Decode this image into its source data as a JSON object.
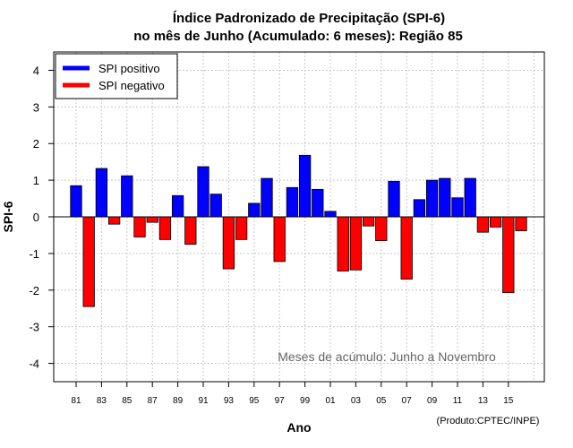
{
  "chart_data": {
    "type": "bar",
    "title_line1": "Índice Padronizado de Precipitação (SPI-6)",
    "title_line2": "no mês de Junho (Acumulado: 6 meses): Região 85",
    "xlabel": "Ano",
    "ylabel": "SPI-6",
    "ylim": [
      -4.5,
      4.5
    ],
    "yticks": [
      "4",
      "3",
      "2",
      "1",
      "0",
      "-1",
      "-2",
      "-3",
      "-4"
    ],
    "ytick_values": [
      4,
      3,
      2,
      1,
      0,
      -1,
      -2,
      -3,
      -4
    ],
    "years": [
      "81",
      "82",
      "83",
      "84",
      "85",
      "86",
      "87",
      "88",
      "89",
      "90",
      "91",
      "92",
      "93",
      "94",
      "95",
      "96",
      "97",
      "98",
      "99",
      "00",
      "01",
      "02",
      "03",
      "04",
      "05",
      "06",
      "07",
      "08",
      "09",
      "10",
      "11",
      "12",
      "13",
      "14",
      "15",
      "16"
    ],
    "xtick_labels": [
      "81",
      "83",
      "85",
      "87",
      "89",
      "91",
      "93",
      "95",
      "97",
      "99",
      "01",
      "03",
      "05",
      "07",
      "09",
      "11",
      "13",
      "15"
    ],
    "values": [
      0.85,
      -2.45,
      1.32,
      -0.2,
      1.12,
      -0.55,
      -0.15,
      -0.62,
      0.58,
      -0.75,
      1.37,
      0.62,
      -1.42,
      -0.62,
      0.37,
      1.05,
      -1.22,
      0.8,
      1.68,
      0.75,
      0.15,
      -1.48,
      -1.45,
      -0.25,
      -0.65,
      0.97,
      -1.7,
      0.47,
      1.0,
      1.05,
      0.52,
      1.05,
      -0.42,
      -0.28,
      -2.07,
      -0.38
    ],
    "legend": [
      "SPI positivo",
      "SPI negativo"
    ],
    "colors": {
      "positive": "#0000ff",
      "negative": "#ff0000",
      "grid": "#c8c8c8",
      "annotation": "#666666"
    },
    "annotation": "Meses de acúmulo: Junho a Novembro",
    "credit": "(Produto:CPTEC/INPE)",
    "grid": true,
    "legend_position": "top-left"
  }
}
